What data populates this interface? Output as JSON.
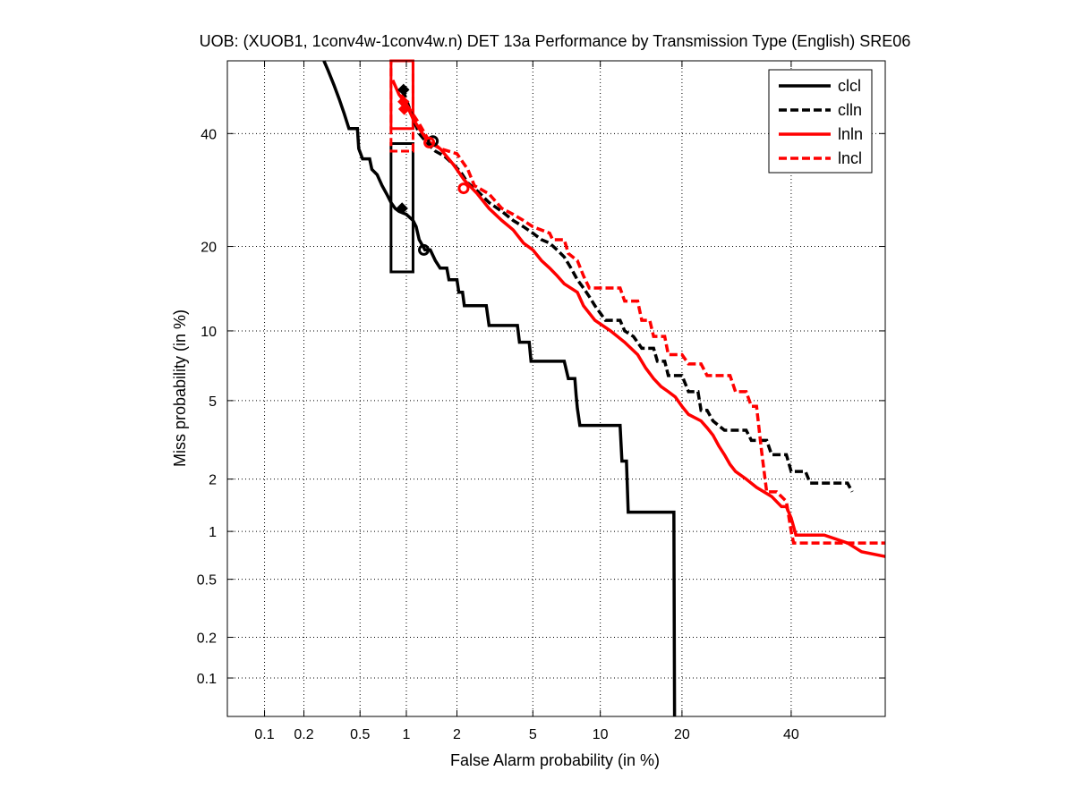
{
  "chart_data": {
    "type": "line",
    "plot_kind": "DET curve (normal-deviate scaled axes)",
    "title": "UOB: (XUOB1, 1conv4w-1conv4w.n) DET 13a Performance by Transmission Type (English) SRE06",
    "xlabel": "False Alarm probability (in %)",
    "ylabel": "Miss probability (in %)",
    "xlim": [
      0.05,
      60
    ],
    "ylim": [
      0.05,
      55
    ],
    "xticks": [
      0.1,
      0.2,
      0.5,
      1,
      2,
      5,
      10,
      20,
      40
    ],
    "xtick_labels": [
      "0.1",
      "0.2",
      "0.5",
      "1",
      "2",
      "5",
      "10",
      "20",
      "40"
    ],
    "yticks": [
      0.1,
      0.2,
      0.5,
      1,
      2,
      5,
      10,
      20,
      40
    ],
    "ytick_labels": [
      "0.1",
      "0.2",
      "0.5",
      "1",
      "2",
      "5",
      "10",
      "20",
      "40"
    ],
    "grid": true,
    "legend_position": "top-right",
    "series": [
      {
        "name": "clcl",
        "color": "#000000",
        "dash": "solid",
        "points": [
          [
            0.28,
            55
          ],
          [
            0.3,
            53
          ],
          [
            0.33,
            50
          ],
          [
            0.36,
            47
          ],
          [
            0.39,
            44
          ],
          [
            0.42,
            41
          ],
          [
            0.48,
            41
          ],
          [
            0.49,
            37
          ],
          [
            0.52,
            35
          ],
          [
            0.58,
            35
          ],
          [
            0.6,
            33
          ],
          [
            0.65,
            32
          ],
          [
            0.7,
            30
          ],
          [
            0.75,
            28.5
          ],
          [
            0.8,
            27
          ],
          [
            0.85,
            26
          ],
          [
            0.9,
            25.5
          ],
          [
            1.0,
            25
          ],
          [
            1.1,
            24
          ],
          [
            1.15,
            23
          ],
          [
            1.2,
            21
          ],
          [
            1.3,
            19.5
          ],
          [
            1.4,
            19.5
          ],
          [
            1.5,
            18
          ],
          [
            1.6,
            17
          ],
          [
            1.75,
            17
          ],
          [
            1.8,
            15.5
          ],
          [
            2.0,
            15.5
          ],
          [
            2.05,
            14
          ],
          [
            2.15,
            14
          ],
          [
            2.2,
            12.5
          ],
          [
            2.9,
            12.5
          ],
          [
            3.0,
            10.5
          ],
          [
            4.2,
            10.5
          ],
          [
            4.3,
            9.0
          ],
          [
            4.8,
            9.0
          ],
          [
            4.9,
            7.5
          ],
          [
            7.0,
            7.5
          ],
          [
            7.3,
            6.3
          ],
          [
            7.8,
            6.3
          ],
          [
            7.9,
            5.3
          ],
          [
            8.0,
            4.6
          ],
          [
            8.2,
            3.8
          ],
          [
            12.0,
            3.8
          ],
          [
            12.2,
            2.5
          ],
          [
            12.7,
            2.5
          ],
          [
            12.9,
            1.3
          ],
          [
            18.8,
            1.3
          ],
          [
            18.9,
            0.05
          ]
        ]
      },
      {
        "name": "clln",
        "color": "#000000",
        "dash": "dashed",
        "points": [
          [
            0.95,
            49
          ],
          [
            1.0,
            47
          ],
          [
            1.1,
            43
          ],
          [
            1.2,
            40
          ],
          [
            1.35,
            38
          ],
          [
            1.5,
            36.5
          ],
          [
            1.7,
            35.5
          ],
          [
            1.9,
            34
          ],
          [
            2.1,
            32.5
          ],
          [
            2.3,
            30.5
          ],
          [
            2.6,
            29
          ],
          [
            3.0,
            27
          ],
          [
            3.5,
            25.5
          ],
          [
            4.0,
            24
          ],
          [
            4.5,
            23
          ],
          [
            5.0,
            22
          ],
          [
            5.5,
            21
          ],
          [
            6.0,
            20.5
          ],
          [
            6.5,
            19.5
          ],
          [
            7.0,
            18.5
          ],
          [
            7.5,
            17
          ],
          [
            8.0,
            15.5
          ],
          [
            8.5,
            14.5
          ],
          [
            9.0,
            13.5
          ],
          [
            9.5,
            12.5
          ],
          [
            10.5,
            11
          ],
          [
            12.0,
            11
          ],
          [
            12.5,
            10
          ],
          [
            13.5,
            9.5
          ],
          [
            14.5,
            8.5
          ],
          [
            16.0,
            8.5
          ],
          [
            16.5,
            7.5
          ],
          [
            17.5,
            7.5
          ],
          [
            18.0,
            6.5
          ],
          [
            20.0,
            6.5
          ],
          [
            21.0,
            5.5
          ],
          [
            22.5,
            5.5
          ],
          [
            23.0,
            4.5
          ],
          [
            24.0,
            4.5
          ],
          [
            25.0,
            4.0
          ],
          [
            27.0,
            3.6
          ],
          [
            31.0,
            3.6
          ],
          [
            32.0,
            3.2
          ],
          [
            35.0,
            3.2
          ],
          [
            36.0,
            2.7
          ],
          [
            39.0,
            2.7
          ],
          [
            40.0,
            2.2
          ],
          [
            43.0,
            2.2
          ],
          [
            44.0,
            1.9
          ],
          [
            52.0,
            1.9
          ],
          [
            53.0,
            1.7
          ]
        ]
      },
      {
        "name": "lnln",
        "color": "#ff0000",
        "dash": "solid",
        "points": [
          [
            0.82,
            51
          ],
          [
            0.9,
            48
          ],
          [
            1.0,
            46
          ],
          [
            1.1,
            43
          ],
          [
            1.2,
            41
          ],
          [
            1.35,
            38.5
          ],
          [
            1.6,
            37
          ],
          [
            1.9,
            34
          ],
          [
            2.2,
            31
          ],
          [
            2.6,
            28.5
          ],
          [
            3.0,
            26
          ],
          [
            3.5,
            24
          ],
          [
            4.0,
            22.5
          ],
          [
            4.5,
            20.5
          ],
          [
            5.0,
            19.5
          ],
          [
            5.5,
            18
          ],
          [
            6.0,
            17
          ],
          [
            6.5,
            16
          ],
          [
            7.0,
            15
          ],
          [
            8.0,
            14
          ],
          [
            8.5,
            12.5
          ],
          [
            9.5,
            11
          ],
          [
            11.0,
            10
          ],
          [
            12.5,
            9
          ],
          [
            14.0,
            8
          ],
          [
            15.0,
            7
          ],
          [
            16.0,
            6.3
          ],
          [
            17.0,
            5.8
          ],
          [
            18.0,
            5.5
          ],
          [
            19.0,
            5.2
          ],
          [
            20.0,
            4.7
          ],
          [
            21.0,
            4.3
          ],
          [
            23.0,
            4.0
          ],
          [
            24.0,
            3.7
          ],
          [
            25.0,
            3.4
          ],
          [
            26.0,
            3.0
          ],
          [
            27.0,
            2.7
          ],
          [
            28.0,
            2.4
          ],
          [
            29.0,
            2.2
          ],
          [
            31.0,
            2.0
          ],
          [
            33.0,
            1.8
          ],
          [
            36.0,
            1.6
          ],
          [
            38.0,
            1.4
          ],
          [
            39.0,
            1.4
          ],
          [
            40.0,
            1.2
          ],
          [
            41.0,
            0.95
          ],
          [
            47.0,
            0.95
          ],
          [
            52.0,
            0.85
          ],
          [
            55.0,
            0.75
          ],
          [
            60.0,
            0.7
          ]
        ]
      },
      {
        "name": "lncl",
        "color": "#ff0000",
        "dash": "dashed",
        "points": [
          [
            0.93,
            48
          ],
          [
            1.0,
            46
          ],
          [
            1.2,
            42
          ],
          [
            1.35,
            39
          ],
          [
            1.6,
            37
          ],
          [
            2.0,
            36
          ],
          [
            2.3,
            33
          ],
          [
            2.5,
            30
          ],
          [
            3.0,
            28.5
          ],
          [
            3.5,
            26
          ],
          [
            4.0,
            25
          ],
          [
            4.5,
            24
          ],
          [
            5.0,
            23
          ],
          [
            6.0,
            22
          ],
          [
            6.2,
            21
          ],
          [
            7.0,
            21
          ],
          [
            7.3,
            19
          ],
          [
            8.0,
            18
          ],
          [
            8.5,
            16
          ],
          [
            9.0,
            14.5
          ],
          [
            12.0,
            14.5
          ],
          [
            12.5,
            13
          ],
          [
            14.0,
            13
          ],
          [
            14.5,
            11
          ],
          [
            15.5,
            11
          ],
          [
            16.0,
            9.5
          ],
          [
            17.5,
            9.5
          ],
          [
            18.0,
            8.0
          ],
          [
            20.0,
            8.0
          ],
          [
            21.0,
            7.3
          ],
          [
            23.0,
            7.3
          ],
          [
            24.0,
            6.5
          ],
          [
            28.0,
            6.5
          ],
          [
            29.0,
            5.5
          ],
          [
            31.0,
            5.5
          ],
          [
            32.0,
            4.7
          ],
          [
            33.0,
            4.7
          ],
          [
            34.0,
            2.8
          ],
          [
            35.0,
            1.7
          ],
          [
            37.0,
            1.7
          ],
          [
            39.0,
            1.5
          ],
          [
            40.0,
            1.0
          ],
          [
            40.5,
            0.85
          ],
          [
            60.0,
            0.85
          ]
        ]
      }
    ],
    "boxes": [
      {
        "series": "clcl",
        "x_range": [
          0.8,
          1.1
        ],
        "y_range": [
          16.5,
          38
        ]
      },
      {
        "series": "lnln",
        "x_range": [
          0.8,
          1.1
        ],
        "y_range": [
          41,
          55
        ]
      },
      {
        "series": "lncl",
        "x_range": [
          0.8,
          1.1
        ],
        "y_range": [
          36.5,
          55
        ]
      }
    ],
    "markers": [
      {
        "series": "clcl",
        "shape": "diamond",
        "x": 0.94,
        "y": 26
      },
      {
        "series": "clcl",
        "shape": "circle",
        "x": 1.28,
        "y": 19.5
      },
      {
        "series": "clln",
        "shape": "diamond",
        "x": 0.96,
        "y": 49
      },
      {
        "series": "clln",
        "shape": "circle",
        "x": 1.45,
        "y": 38.5
      },
      {
        "series": "lnln",
        "shape": "diamond",
        "x": 0.96,
        "y": 46.5
      },
      {
        "series": "lnln",
        "shape": "circle",
        "x": 1.38,
        "y": 38.2
      },
      {
        "series": "lncl",
        "shape": "diamond",
        "x": 0.97,
        "y": 45
      },
      {
        "series": "lncl",
        "shape": "circle",
        "x": 2.18,
        "y": 29.5
      }
    ]
  }
}
